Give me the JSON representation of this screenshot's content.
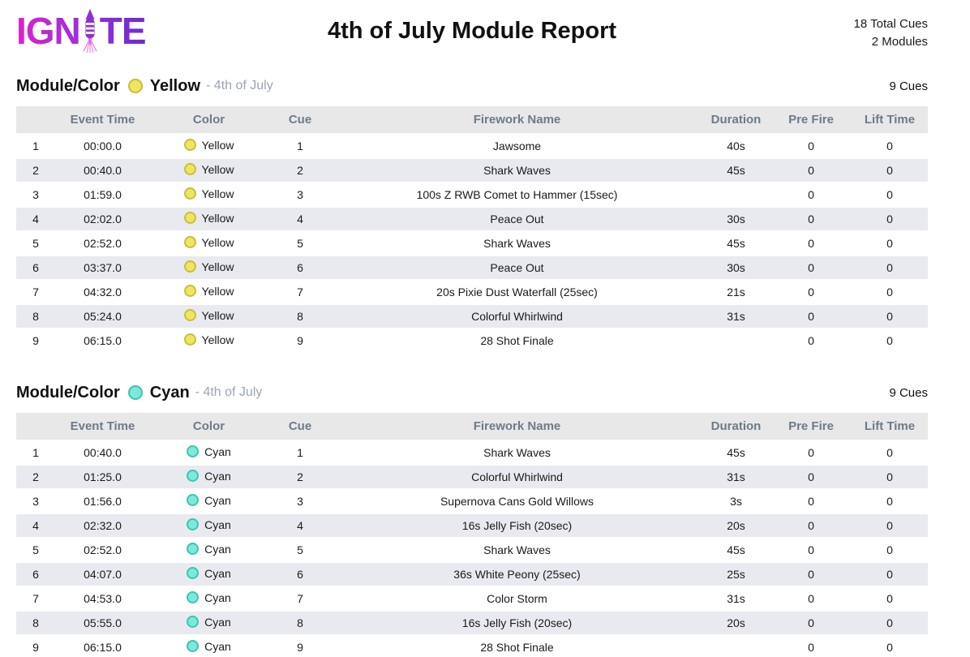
{
  "header": {
    "logo": {
      "part1": "IGN",
      "part2": "TE",
      "gradient_start": "#e01fd0",
      "gradient_end": "#6f2bd0"
    },
    "title": "4th of July Module Report",
    "stats": {
      "total_cues": "18 Total Cues",
      "modules_count": "2 Modules"
    }
  },
  "table_headers": [
    "",
    "Event Time",
    "Color",
    "Cue",
    "Firework Name",
    "Duration",
    "Pre Fire",
    "Lift Time"
  ],
  "modules": [
    {
      "label": "Module/Color",
      "color_name": "Yellow",
      "show_suffix": "- 4th of July",
      "cue_count": "9 Cues",
      "dot": {
        "fill": "#efe65f",
        "border": "#c9be3e"
      },
      "rows": [
        {
          "num": "1",
          "event_time": "00:00.0",
          "color": "Yellow",
          "cue": "1",
          "firework_name": "Jawsome",
          "duration": "40s",
          "pre_fire": "0",
          "lift_time": "0"
        },
        {
          "num": "2",
          "event_time": "00:40.0",
          "color": "Yellow",
          "cue": "2",
          "firework_name": "Shark Waves",
          "duration": "45s",
          "pre_fire": "0",
          "lift_time": "0"
        },
        {
          "num": "3",
          "event_time": "01:59.0",
          "color": "Yellow",
          "cue": "3",
          "firework_name": "100s Z RWB Comet to Hammer (15sec)",
          "duration": "",
          "pre_fire": "0",
          "lift_time": "0"
        },
        {
          "num": "4",
          "event_time": "02:02.0",
          "color": "Yellow",
          "cue": "4",
          "firework_name": "Peace Out",
          "duration": "30s",
          "pre_fire": "0",
          "lift_time": "0"
        },
        {
          "num": "5",
          "event_time": "02:52.0",
          "color": "Yellow",
          "cue": "5",
          "firework_name": "Shark Waves",
          "duration": "45s",
          "pre_fire": "0",
          "lift_time": "0"
        },
        {
          "num": "6",
          "event_time": "03:37.0",
          "color": "Yellow",
          "cue": "6",
          "firework_name": "Peace Out",
          "duration": "30s",
          "pre_fire": "0",
          "lift_time": "0"
        },
        {
          "num": "7",
          "event_time": "04:32.0",
          "color": "Yellow",
          "cue": "7",
          "firework_name": "20s Pixie Dust Waterfall (25sec)",
          "duration": "21s",
          "pre_fire": "0",
          "lift_time": "0"
        },
        {
          "num": "8",
          "event_time": "05:24.0",
          "color": "Yellow",
          "cue": "8",
          "firework_name": "Colorful Whirlwind",
          "duration": "31s",
          "pre_fire": "0",
          "lift_time": "0"
        },
        {
          "num": "9",
          "event_time": "06:15.0",
          "color": "Yellow",
          "cue": "9",
          "firework_name": "28 Shot Finale",
          "duration": "",
          "pre_fire": "0",
          "lift_time": "0"
        }
      ]
    },
    {
      "label": "Module/Color",
      "color_name": "Cyan",
      "show_suffix": "- 4th of July",
      "cue_count": "9 Cues",
      "dot": {
        "fill": "#7ce9da",
        "border": "#3fc4b2"
      },
      "rows": [
        {
          "num": "1",
          "event_time": "00:40.0",
          "color": "Cyan",
          "cue": "1",
          "firework_name": "Shark Waves",
          "duration": "45s",
          "pre_fire": "0",
          "lift_time": "0"
        },
        {
          "num": "2",
          "event_time": "01:25.0",
          "color": "Cyan",
          "cue": "2",
          "firework_name": "Colorful Whirlwind",
          "duration": "31s",
          "pre_fire": "0",
          "lift_time": "0"
        },
        {
          "num": "3",
          "event_time": "01:56.0",
          "color": "Cyan",
          "cue": "3",
          "firework_name": "Supernova Cans Gold Willows",
          "duration": "3s",
          "pre_fire": "0",
          "lift_time": "0"
        },
        {
          "num": "4",
          "event_time": "02:32.0",
          "color": "Cyan",
          "cue": "4",
          "firework_name": "16s Jelly Fish (20sec)",
          "duration": "20s",
          "pre_fire": "0",
          "lift_time": "0"
        },
        {
          "num": "5",
          "event_time": "02:52.0",
          "color": "Cyan",
          "cue": "5",
          "firework_name": "Shark Waves",
          "duration": "45s",
          "pre_fire": "0",
          "lift_time": "0"
        },
        {
          "num": "6",
          "event_time": "04:07.0",
          "color": "Cyan",
          "cue": "6",
          "firework_name": "36s White Peony (25sec)",
          "duration": "25s",
          "pre_fire": "0",
          "lift_time": "0"
        },
        {
          "num": "7",
          "event_time": "04:53.0",
          "color": "Cyan",
          "cue": "7",
          "firework_name": "Color Storm",
          "duration": "31s",
          "pre_fire": "0",
          "lift_time": "0"
        },
        {
          "num": "8",
          "event_time": "05:55.0",
          "color": "Cyan",
          "cue": "8",
          "firework_name": "16s Jelly Fish (20sec)",
          "duration": "20s",
          "pre_fire": "0",
          "lift_time": "0"
        },
        {
          "num": "9",
          "event_time": "06:15.0",
          "color": "Cyan",
          "cue": "9",
          "firework_name": "28 Shot Finale",
          "duration": "",
          "pre_fire": "0",
          "lift_time": "0"
        }
      ]
    }
  ]
}
